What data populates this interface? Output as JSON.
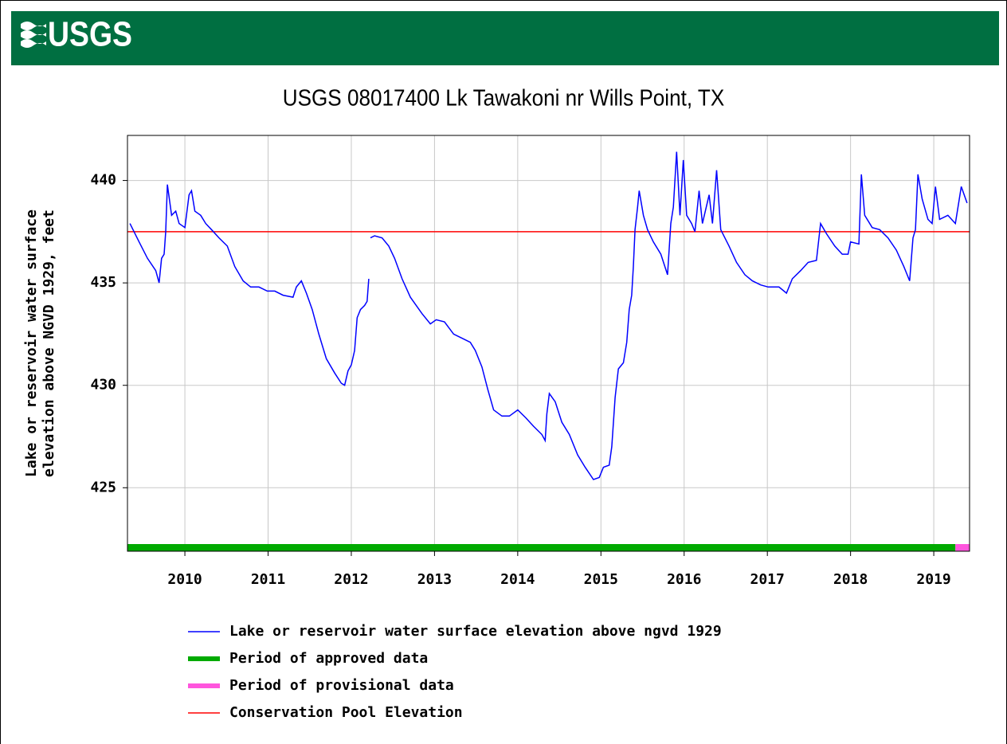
{
  "logo": "USGS",
  "chart_data": {
    "type": "line",
    "title": "USGS 08017400 Lk Tawakoni nr Wills Point, TX",
    "ylabel": [
      "Lake or reservoir water surface",
      "elevation above NGVD 1929, feet"
    ],
    "xlim": [
      2009.31,
      2019.43
    ],
    "xticks": [
      2010,
      2011,
      2012,
      2013,
      2014,
      2015,
      2016,
      2017,
      2018,
      2019
    ],
    "ylim": [
      421.9,
      442.2
    ],
    "yticks": [
      425,
      430,
      435,
      440
    ],
    "grid": true,
    "x": [
      2009.34,
      2009.45,
      2009.55,
      2009.65,
      2009.69,
      2009.72,
      2009.75,
      2009.77,
      2009.79,
      2009.84,
      2009.89,
      2009.93,
      2010.0,
      2010.05,
      2010.08,
      2010.12,
      2010.19,
      2010.25,
      2010.32,
      2010.41,
      2010.51,
      2010.6,
      2010.7,
      2010.79,
      2010.89,
      2010.99,
      2011.08,
      2011.18,
      2011.3,
      2011.34,
      2011.4,
      2011.46,
      2011.53,
      2011.61,
      2011.7,
      2011.8,
      2011.88,
      2011.92,
      2011.96,
      2012.0,
      2012.04,
      2012.07,
      2012.11,
      2012.16,
      2012.19,
      2012.21,
      2012.22,
      2012.23,
      2012.28,
      2012.37,
      2012.45,
      2012.52,
      2012.61,
      2012.71,
      2012.85,
      2012.95,
      2013.02,
      2013.12,
      2013.23,
      2013.33,
      2013.43,
      2013.49,
      2013.57,
      2013.64,
      2013.71,
      2013.81,
      2013.9,
      2014.0,
      2014.1,
      2014.19,
      2014.29,
      2014.33,
      2014.35,
      2014.38,
      2014.45,
      2014.53,
      2014.62,
      2014.72,
      2014.81,
      2014.91,
      2014.98,
      2015.03,
      2015.1,
      2015.13,
      2015.17,
      2015.21,
      2015.27,
      2015.31,
      2015.34,
      2015.37,
      2015.39,
      2015.41,
      2015.44,
      2015.46,
      2015.51,
      2015.56,
      2015.63,
      2015.72,
      2015.8,
      2015.84,
      2015.87,
      2015.91,
      2015.95,
      2015.99,
      2016.03,
      2016.09,
      2016.13,
      2016.18,
      2016.22,
      2016.3,
      2016.34,
      2016.39,
      2016.44,
      2016.54,
      2016.63,
      2016.73,
      2016.82,
      2016.92,
      2017.01,
      2017.14,
      2017.23,
      2017.3,
      2017.4,
      2017.49,
      2017.59,
      2017.64,
      2017.71,
      2017.81,
      2017.9,
      2017.97,
      2018.0,
      2018.1,
      2018.13,
      2018.17,
      2018.26,
      2018.35,
      2018.45,
      2018.55,
      2018.64,
      2018.71,
      2018.75,
      2018.78,
      2018.81,
      2018.86,
      2018.93,
      2018.98,
      2019.02,
      2019.07,
      2019.17,
      2019.26,
      2019.33,
      2019.4
    ],
    "series": [
      {
        "name": "Lake or reservoir water surface elevation above ngvd 1929",
        "color": "#0000ff",
        "values": [
          437.9,
          437.0,
          436.2,
          435.6,
          435.0,
          436.2,
          436.4,
          437.5,
          439.8,
          438.3,
          438.5,
          437.9,
          437.7,
          439.3,
          439.5,
          438.5,
          438.3,
          437.9,
          437.6,
          437.2,
          436.8,
          435.8,
          435.1,
          434.8,
          434.8,
          434.6,
          434.6,
          434.4,
          434.3,
          434.8,
          435.1,
          434.5,
          433.7,
          432.5,
          431.3,
          430.6,
          430.1,
          430.0,
          430.7,
          431.0,
          431.7,
          433.3,
          433.7,
          433.9,
          434.1,
          435.2,
          null,
          437.2,
          437.3,
          437.2,
          436.8,
          436.2,
          435.2,
          434.3,
          433.5,
          433.0,
          433.2,
          433.1,
          432.5,
          432.3,
          432.1,
          431.7,
          430.9,
          429.8,
          428.8,
          428.5,
          428.5,
          428.8,
          428.4,
          428.0,
          427.6,
          427.3,
          428.6,
          429.6,
          429.2,
          428.2,
          427.6,
          426.6,
          426.0,
          425.4,
          425.5,
          426.0,
          426.1,
          427.0,
          429.4,
          430.8,
          431.1,
          432.1,
          433.7,
          434.4,
          435.8,
          437.6,
          438.7,
          439.5,
          438.3,
          437.6,
          437.0,
          436.4,
          435.4,
          437.9,
          438.7,
          441.4,
          438.3,
          441.0,
          438.3,
          437.9,
          437.5,
          439.5,
          437.9,
          439.3,
          437.9,
          440.5,
          437.6,
          436.8,
          436.0,
          435.4,
          435.1,
          434.9,
          434.8,
          434.8,
          434.5,
          435.2,
          435.6,
          436.0,
          436.1,
          437.9,
          437.4,
          436.8,
          436.4,
          436.4,
          437.0,
          436.9,
          440.3,
          438.3,
          437.7,
          437.6,
          437.2,
          436.6,
          435.8,
          435.1,
          437.2,
          437.6,
          440.3,
          439.1,
          438.1,
          437.9,
          439.7,
          438.1,
          438.3,
          437.9,
          439.7,
          438.9
        ]
      }
    ],
    "bands": [
      {
        "name": "Period of approved data",
        "color": "#00aa00",
        "start": 2009.31,
        "end": 2019.26
      },
      {
        "name": "Period of provisional data",
        "color": "#ff55dd",
        "start": 2019.26,
        "end": 2019.43
      }
    ],
    "reference_lines": [
      {
        "name": "Conservation Pool Elevation",
        "color": "#ff0000",
        "value": 437.5
      }
    ]
  }
}
